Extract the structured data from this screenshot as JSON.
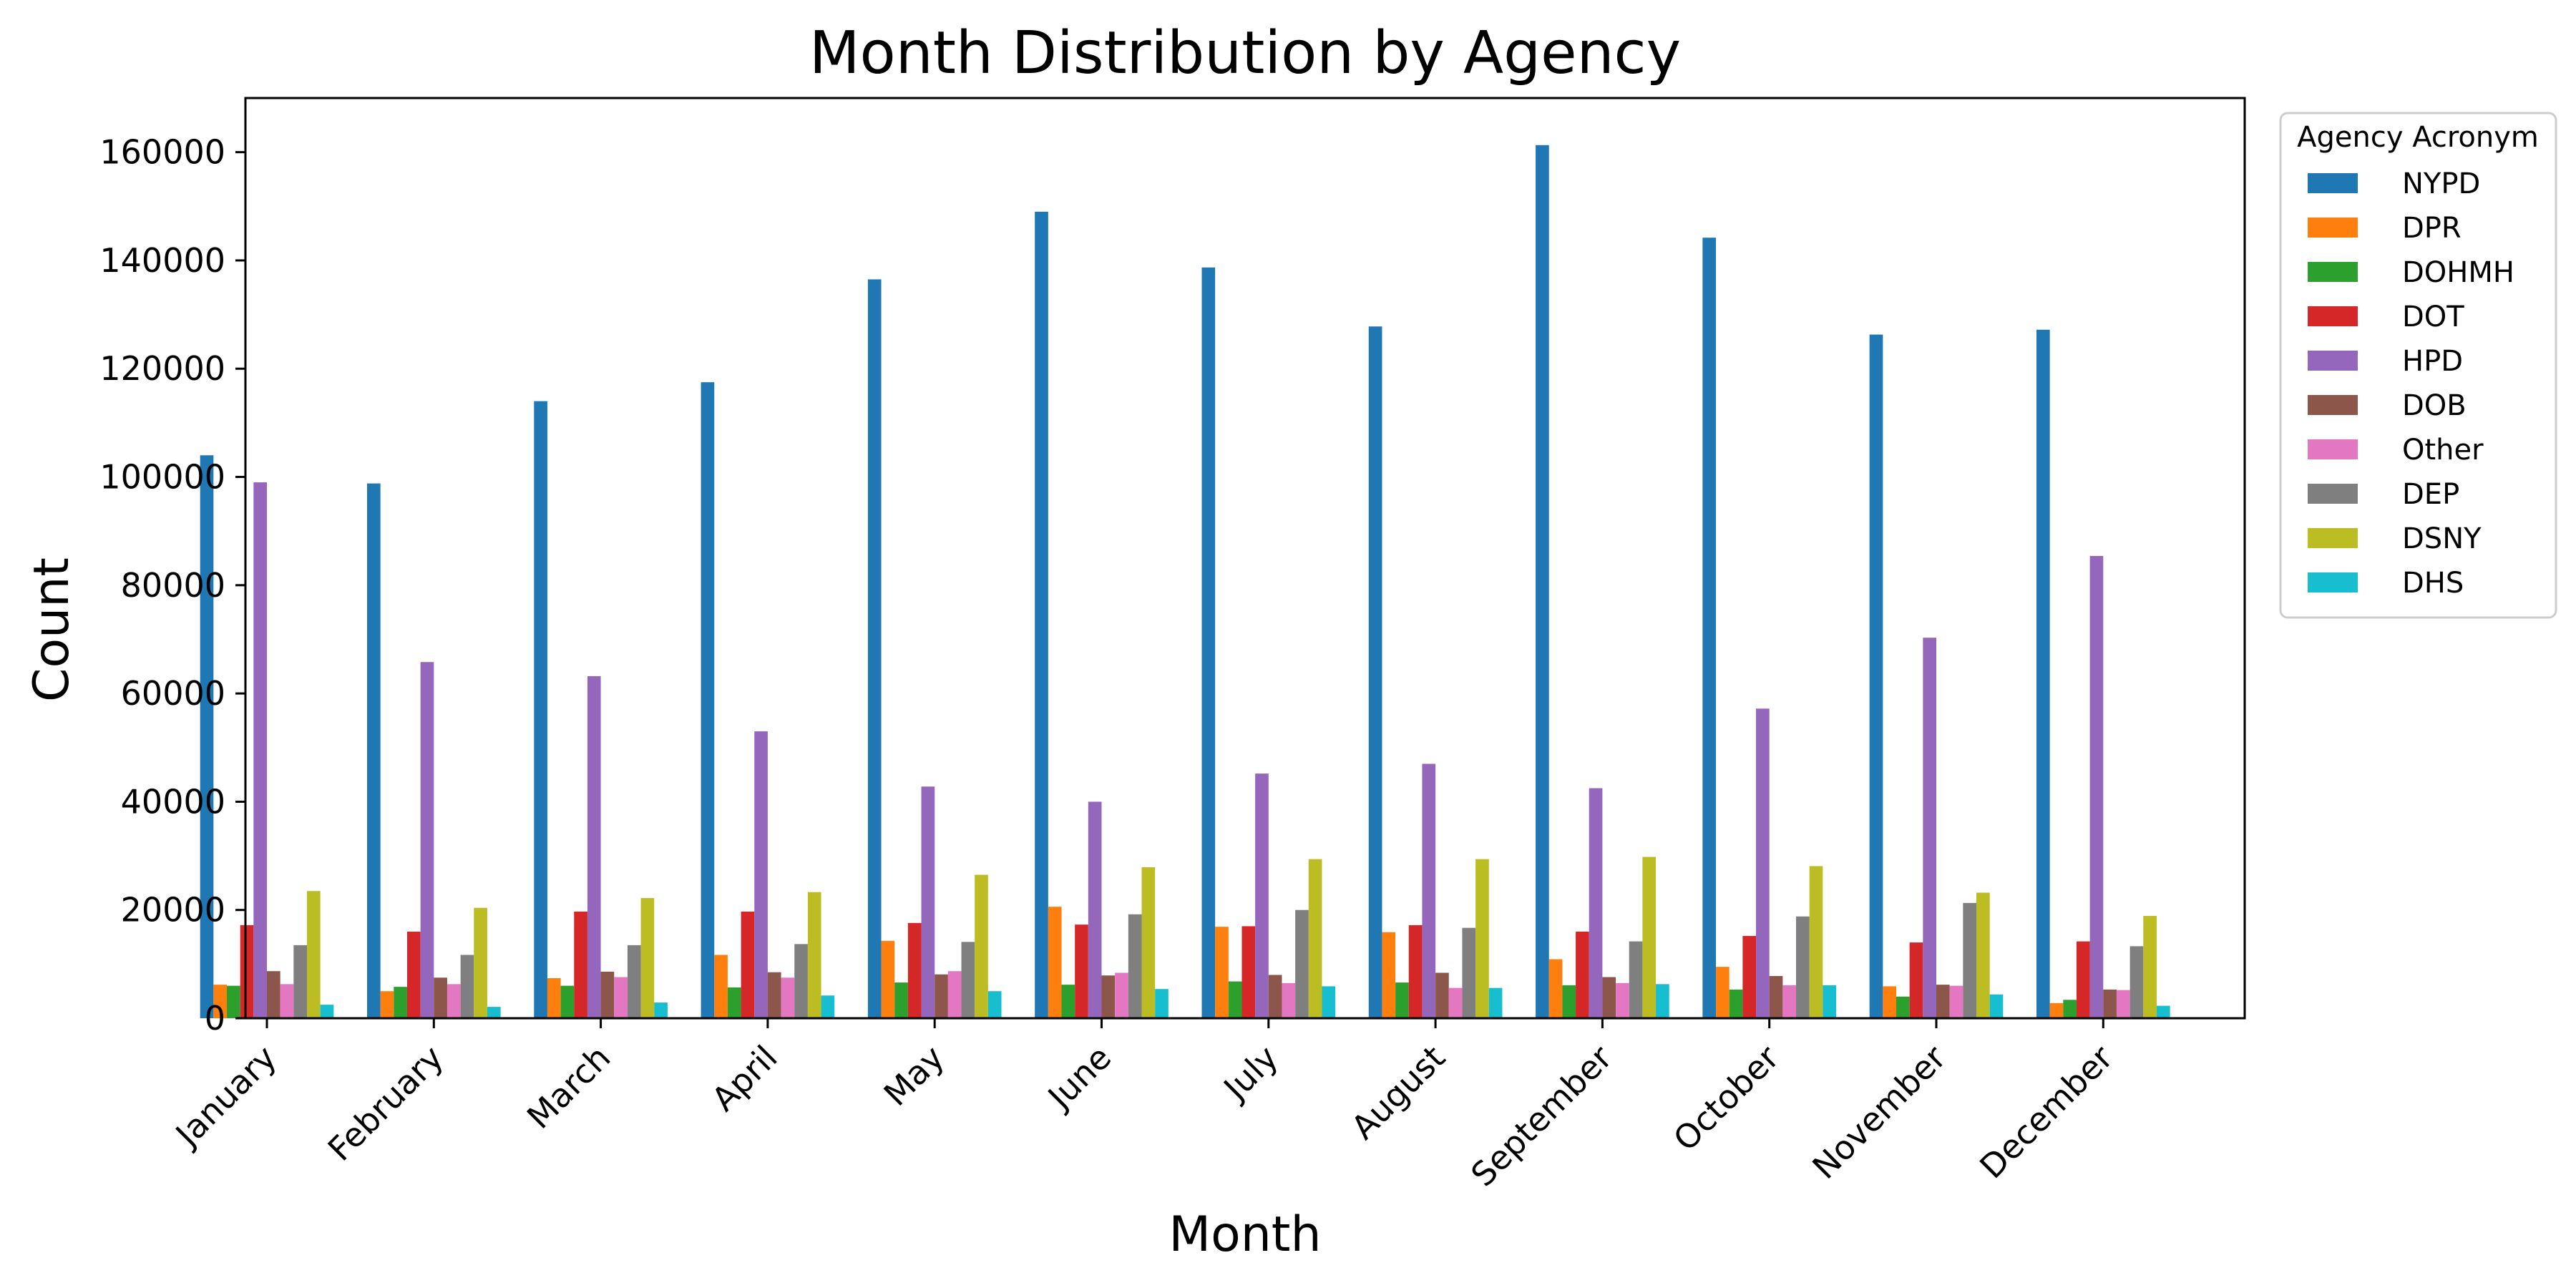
{
  "chart_data": {
    "type": "bar",
    "title": "Month Distribution by Agency",
    "xlabel": "Month",
    "ylabel": "Count",
    "ylim": [
      0,
      170000
    ],
    "yticks": [
      0,
      20000,
      40000,
      60000,
      80000,
      100000,
      120000,
      140000,
      160000
    ],
    "grid": false,
    "legend_title": "Agency Acronym",
    "legend_position": "outside-top-right",
    "categories": [
      "January",
      "February",
      "March",
      "April",
      "May",
      "June",
      "July",
      "August",
      "September",
      "October",
      "November",
      "December"
    ],
    "series": [
      {
        "name": "NYPD",
        "color": "#1f77b4",
        "values": [
          104000,
          98800,
          114000,
          117500,
          136500,
          149000,
          138700,
          127800,
          161300,
          144200,
          126300,
          127200
        ]
      },
      {
        "name": "DPR",
        "color": "#ff7f0e",
        "values": [
          6200,
          5000,
          7400,
          11700,
          14300,
          20600,
          16900,
          15900,
          10900,
          9500,
          5900,
          2800
        ]
      },
      {
        "name": "DOHMH",
        "color": "#2ca02c",
        "values": [
          6000,
          5800,
          6000,
          5700,
          6600,
          6200,
          6800,
          6600,
          6100,
          5300,
          4000,
          3400
        ]
      },
      {
        "name": "DOT",
        "color": "#d62728",
        "values": [
          17200,
          16000,
          19700,
          19700,
          17600,
          17300,
          17000,
          17200,
          16000,
          15200,
          14000,
          14200
        ]
      },
      {
        "name": "HPD",
        "color": "#9467bd",
        "values": [
          99000,
          65800,
          63200,
          53000,
          42800,
          40000,
          45200,
          47000,
          42500,
          57200,
          70300,
          85400
        ]
      },
      {
        "name": "DOB",
        "color": "#8c564b",
        "values": [
          8700,
          7500,
          8600,
          8500,
          8100,
          7900,
          8000,
          8400,
          7600,
          7800,
          6200,
          5300
        ]
      },
      {
        "name": "Other",
        "color": "#e377c2",
        "values": [
          6300,
          6300,
          7600,
          7500,
          8700,
          8400,
          6500,
          5600,
          6500,
          6100,
          6000,
          5200
        ]
      },
      {
        "name": "DEP",
        "color": "#7f7f7f",
        "values": [
          13500,
          11700,
          13500,
          13700,
          14100,
          19200,
          20000,
          16700,
          14200,
          18800,
          21300,
          13300
        ]
      },
      {
        "name": "DSNY",
        "color": "#bcbd22",
        "values": [
          23500,
          20400,
          22200,
          23300,
          26500,
          27900,
          29400,
          29400,
          29800,
          28100,
          23200,
          18900
        ]
      },
      {
        "name": "DHS",
        "color": "#17becf",
        "values": [
          2500,
          2100,
          2900,
          4200,
          5000,
          5400,
          5900,
          5600,
          6300,
          6100,
          4400,
          2300
        ]
      }
    ]
  }
}
